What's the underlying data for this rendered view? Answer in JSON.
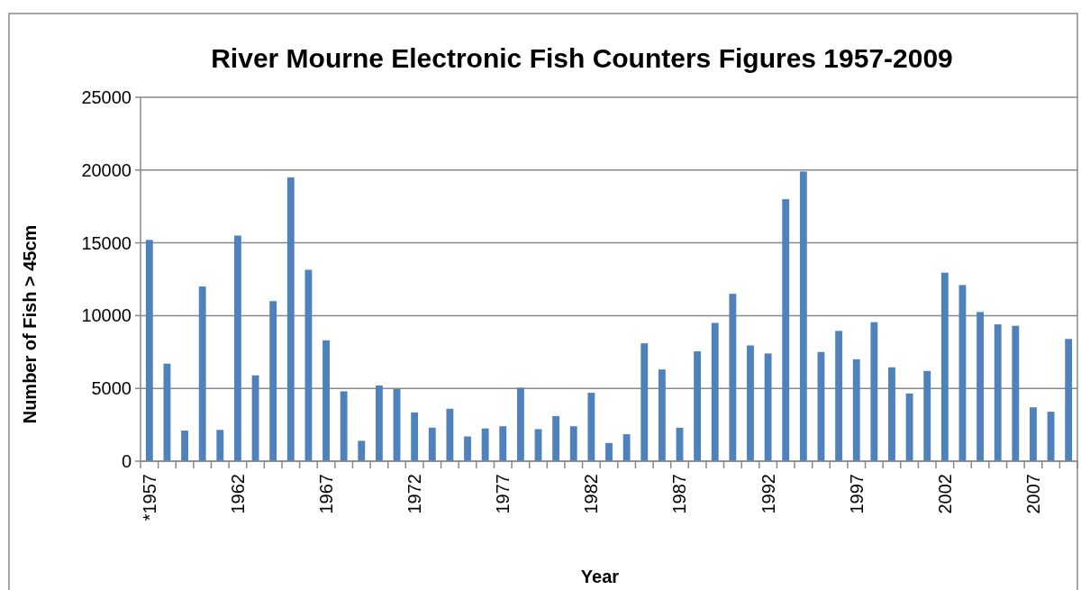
{
  "chart_data": {
    "type": "bar",
    "title": "River Mourne Electronic Fish Counters Figures 1957-2009",
    "xlabel": "Year",
    "ylabel": "Number of Fish > 45cm",
    "categories": [
      "*1957",
      null,
      null,
      null,
      null,
      "1962",
      null,
      null,
      null,
      null,
      "1967",
      null,
      null,
      null,
      null,
      "1972",
      null,
      null,
      null,
      null,
      "1977",
      null,
      null,
      null,
      null,
      "1982",
      null,
      null,
      null,
      null,
      "1987",
      null,
      null,
      null,
      null,
      "1992",
      null,
      null,
      null,
      null,
      "1997",
      null,
      null,
      null,
      null,
      "2002",
      null,
      null,
      null,
      null,
      "2007",
      null,
      null
    ],
    "series": [
      {
        "color": "#4f81bd",
        "values": [
          15200,
          6700,
          2100,
          12000,
          2150,
          15500,
          5900,
          11000,
          19500,
          13150,
          8300,
          4800,
          1400,
          5200,
          4950,
          3350,
          2300,
          3600,
          1700,
          2250,
          2400,
          5050,
          2200,
          3100,
          2400,
          4700,
          1250,
          1850,
          8100,
          6300,
          2300,
          7550,
          9500,
          11500,
          7950,
          7400,
          18000,
          19900,
          7500,
          8950,
          7000,
          9550,
          6450,
          4650,
          6200,
          12950,
          12100,
          10250,
          9400,
          9300,
          3700,
          3400,
          8400
        ]
      }
    ],
    "ylim": [
      0,
      25000
    ],
    "yticks": [
      0,
      5000,
      10000,
      15000,
      20000,
      25000
    ],
    "grid": "y"
  }
}
